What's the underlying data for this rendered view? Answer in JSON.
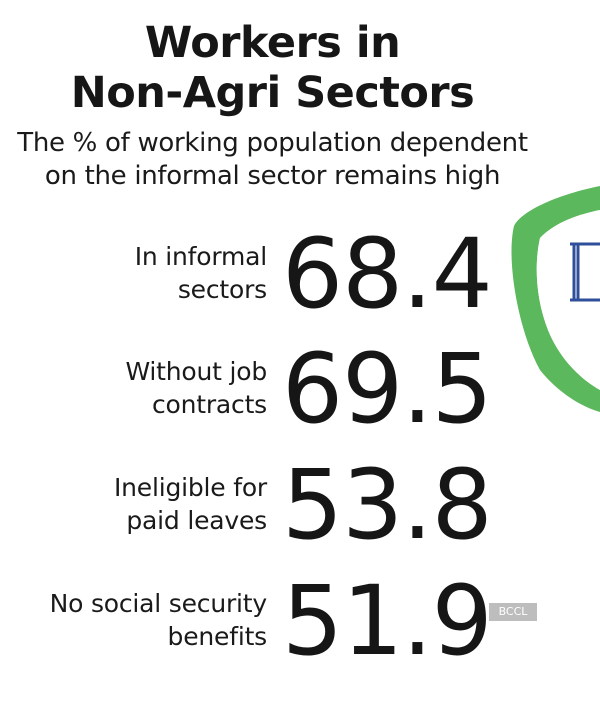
{
  "header": {
    "title_line1": "Workers in",
    "title_line2": "Non-Agri Sectors",
    "subtitle_line1": "The % of working population dependent",
    "subtitle_line2": "on the informal sector remains high"
  },
  "stats": [
    {
      "label_line1": "In informal",
      "label_line2": "sectors",
      "value": "68.4"
    },
    {
      "label_line1": "Without job",
      "label_line2": "contracts",
      "value": "69.5"
    },
    {
      "label_line1": "Ineligible for",
      "label_line2": "paid leaves",
      "value": "53.8"
    },
    {
      "label_line1": "No social security",
      "label_line2": "benefits",
      "value": "51.9"
    }
  ],
  "watermark": "BCCL",
  "colors": {
    "text": "#161616",
    "accent_green": "#4caf50",
    "accent_blue": "#2f4f9a",
    "watermark_bg": "#bdbdbd"
  }
}
